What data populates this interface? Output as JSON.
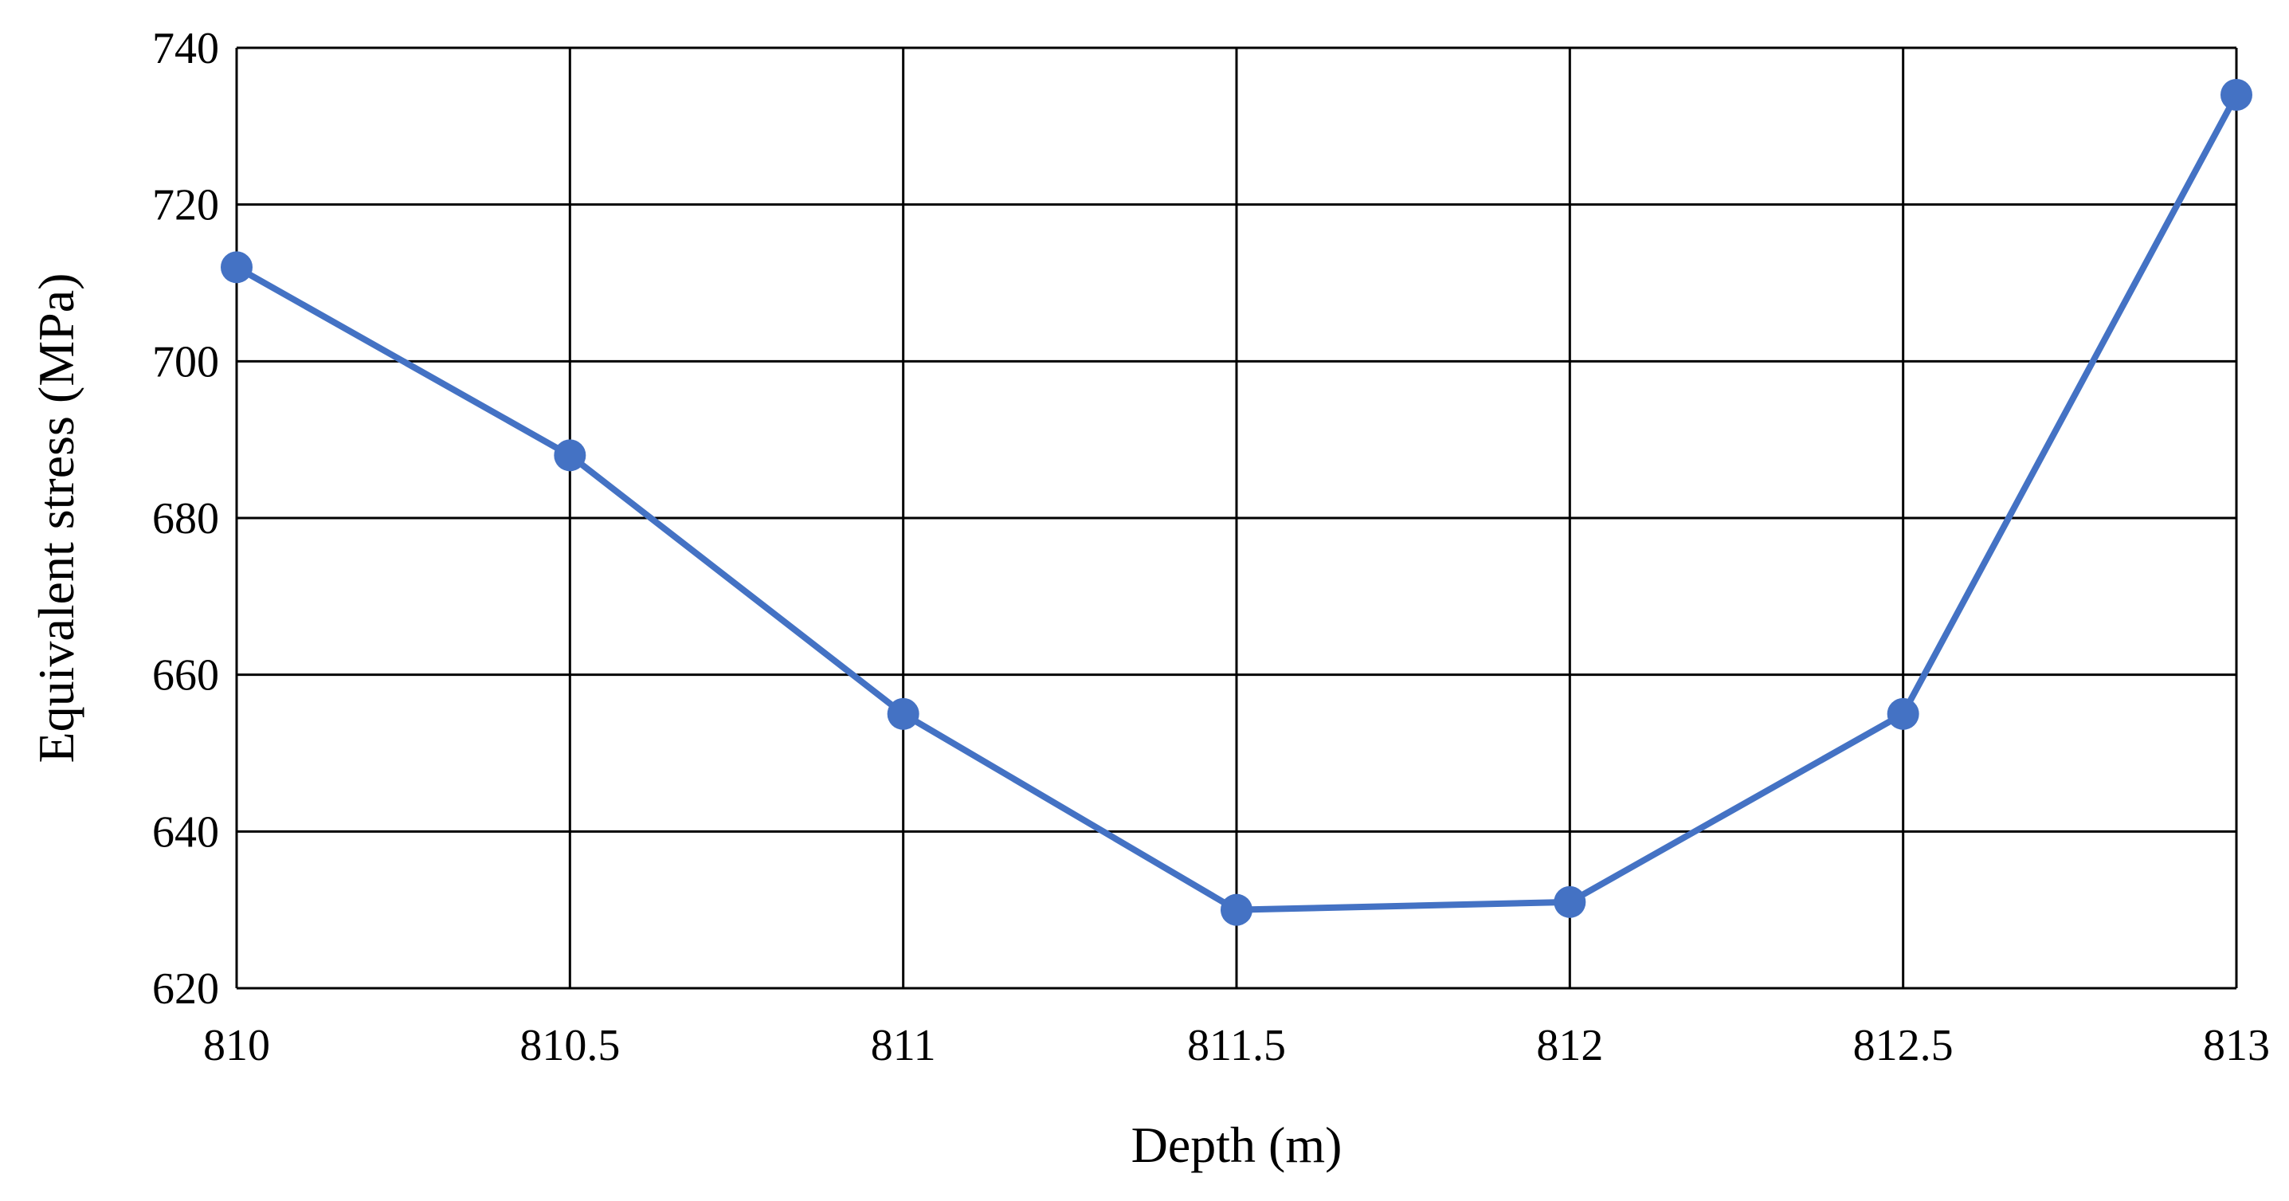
{
  "chart_data": {
    "type": "line",
    "title": "",
    "xlabel": "Depth (m)",
    "ylabel": "Equivalent stress (MPa)",
    "xlim": [
      810,
      813
    ],
    "ylim": [
      620,
      740
    ],
    "x_ticks": [
      "810",
      "810.5",
      "811",
      "811.5",
      "812",
      "812.5",
      "813"
    ],
    "y_ticks": [
      "620",
      "640",
      "660",
      "680",
      "700",
      "720",
      "740"
    ],
    "grid": true,
    "legend": "none",
    "series": [
      {
        "x": [
          810,
          810.5,
          811,
          811.5,
          812,
          812.5,
          813
        ],
        "y": [
          712,
          688,
          655,
          630,
          631,
          655,
          734
        ],
        "color": "#4472C4",
        "marker": "circle"
      }
    ]
  }
}
